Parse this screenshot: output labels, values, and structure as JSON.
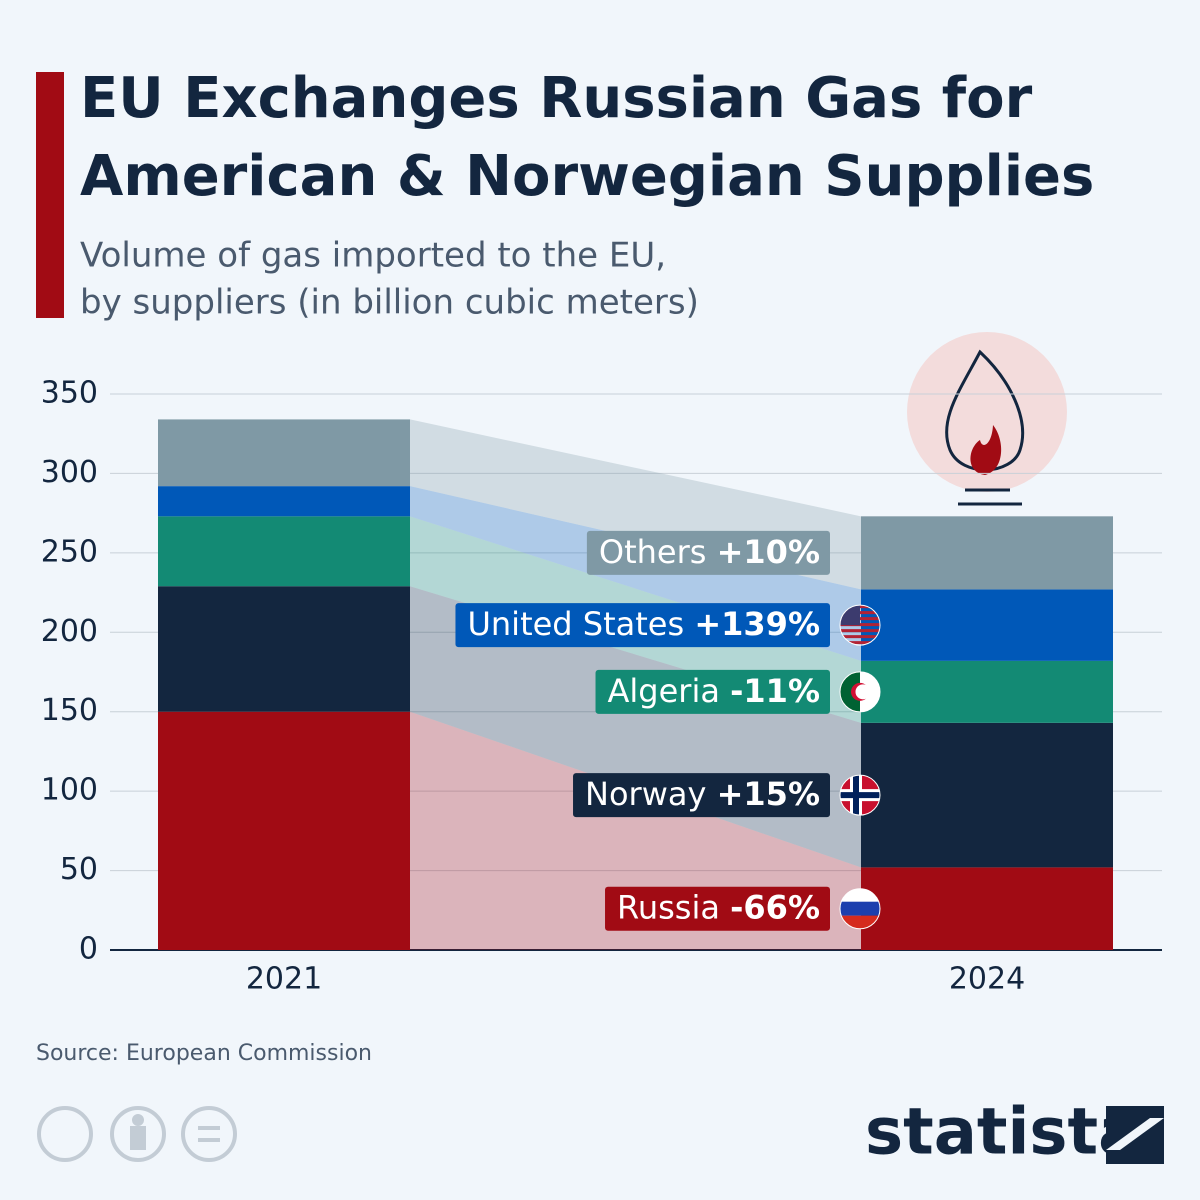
{
  "chart_data": {
    "type": "stacked-bar",
    "title_lines": [
      "EU Exchanges Russian Gas for",
      "American & Norwegian Supplies"
    ],
    "subtitle_lines": [
      "Volume of gas imported to the EU,",
      "by suppliers (in billion cubic meters)"
    ],
    "categories": [
      "2021",
      "2024"
    ],
    "series": [
      {
        "name": "Russia",
        "change": "-66%",
        "color": "#a10b14",
        "values": [
          150,
          52
        ]
      },
      {
        "name": "Norway",
        "change": "+15%",
        "color": "#13263f",
        "values": [
          79,
          91
        ]
      },
      {
        "name": "Algeria",
        "change": "-11%",
        "color": "#138a74",
        "values": [
          44,
          39
        ]
      },
      {
        "name": "United States",
        "change": "+139%",
        "color": "#0058b8",
        "values": [
          19,
          45
        ]
      },
      {
        "name": "Others",
        "change": "+10%",
        "color": "#7f99a5",
        "values": [
          42,
          46
        ]
      }
    ],
    "ylim": [
      0,
      350
    ],
    "yticks": [
      0,
      50,
      100,
      150,
      200,
      250,
      300,
      350
    ],
    "grid": true,
    "source": "Source: European Commission",
    "brand": "statista"
  }
}
